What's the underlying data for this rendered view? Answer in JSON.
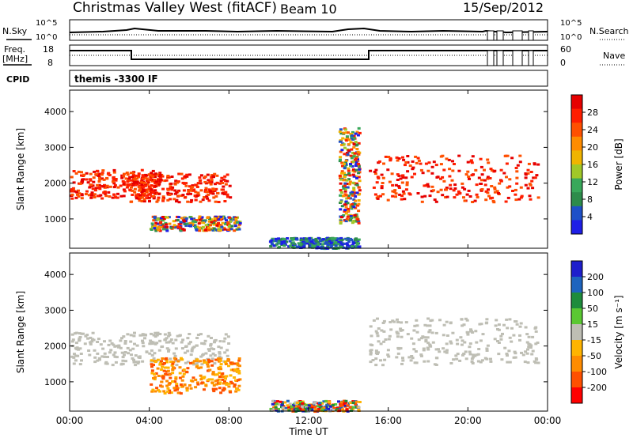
{
  "header": {
    "station": "Christmas Valley West (fitACF)",
    "beam": "Beam 10",
    "date": "15/Sep/2012",
    "cpid": "themis -3300 IF"
  },
  "labels": {
    "nsky_line1": "N.Sky",
    "nsearch": "N.Search",
    "freq_line1": "Freq.",
    "freq_line2": "[MHz]",
    "nave": "Nave",
    "cpid": "CPID",
    "power_panel_ylabel": "Slant Range [km]",
    "velocity_panel_ylabel": "Slant Range [km]",
    "xlabel": "Time UT",
    "power_cbar_label": "Power [dB]",
    "velocity_cbar_label": "Velocity [m s⁻¹]"
  },
  "colors": {
    "power_scale": [
      "#1e1ee6",
      "#1e50c8",
      "#2d8c4b",
      "#38a85a",
      "#a0c828",
      "#f0b400",
      "#ff8c00",
      "#ff5000",
      "#ff1e00",
      "#e60000"
    ],
    "velocity_scale": [
      "#1e1ecc",
      "#1e64be",
      "#1e8c3c",
      "#5ac832",
      "#bebeb4",
      "#ffb400",
      "#ff8c00",
      "#ff5000",
      "#ff0000"
    ],
    "ground_scatter": "#bebeb4"
  },
  "chart_data": [
    {
      "type": "line",
      "name": "N.Sky / N.Search noise panel",
      "y_left_ticks": [
        "10^5",
        "10^0"
      ],
      "y_right_ticks": [
        "10^5",
        "10^0"
      ],
      "series": [
        {
          "name": "N.Sky",
          "x": [
            0,
            2,
            4,
            6,
            8,
            10,
            12,
            14,
            15,
            16,
            18,
            20,
            21,
            22,
            23,
            24
          ],
          "values": [
            2,
            2,
            2.1,
            2.1,
            2,
            2,
            2.1,
            2.3,
            2.1,
            2.1,
            2.2,
            2.1,
            2.1,
            2.1,
            2.1,
            2
          ]
        },
        {
          "name": "N.Search",
          "x": [
            0,
            2,
            4,
            6,
            8,
            10,
            12,
            14,
            15,
            16,
            18,
            20,
            21,
            22,
            23,
            24
          ],
          "values": [
            1.6,
            1.6,
            1.6,
            1.6,
            1.6,
            1.6,
            1.6,
            1.6,
            1.6,
            1.6,
            1.6,
            1.6,
            1.6,
            1.6,
            1.6,
            1.6
          ]
        }
      ]
    },
    {
      "type": "line",
      "name": "Frequency / Nave panel",
      "y_left_ticks": [
        "18",
        "8"
      ],
      "y_right_ticks": [
        "60",
        "0"
      ],
      "series": [
        {
          "name": "Freq.",
          "x": [
            0,
            2.95,
            3.0,
            14.9,
            15.0,
            24
          ],
          "values": [
            15.5,
            15.5,
            9.5,
            9.5,
            15.5,
            15.5
          ]
        },
        {
          "name": "Nave",
          "x": [
            0,
            24
          ],
          "values": [
            33,
            33
          ]
        }
      ]
    },
    {
      "type": "heatmap",
      "name": "Power",
      "xlabel": "Time UT",
      "ylabel": "Slant Range [km]",
      "x_ticks": [
        "00:00",
        "04:00",
        "08:00",
        "12:00",
        "16:00",
        "20:00",
        "00:00"
      ],
      "xlim": [
        0,
        24
      ],
      "y_ticks": [
        1000,
        2000,
        3000,
        4000
      ],
      "ylim": [
        180,
        4600
      ],
      "colorbar_ticks": [
        4,
        8,
        12,
        16,
        20,
        24,
        28
      ],
      "colorbar_label": "Power [dB]",
      "regions": [
        {
          "t": [
            0,
            4.5
          ],
          "r": [
            1600,
            2400
          ],
          "level": "high"
        },
        {
          "t": [
            3,
            8
          ],
          "r": [
            1500,
            2300
          ],
          "level": "high"
        },
        {
          "t": [
            4,
            8.5
          ],
          "r": [
            700,
            1100
          ],
          "level": "mixed"
        },
        {
          "t": [
            10,
            14.5
          ],
          "r": [
            200,
            500
          ],
          "level": "low"
        },
        {
          "t": [
            15,
            23.5
          ],
          "r": [
            1500,
            2800
          ],
          "level": "high"
        },
        {
          "t": [
            13.5,
            14.5
          ],
          "r": [
            900,
            3600
          ],
          "level": "mixed"
        }
      ]
    },
    {
      "type": "heatmap",
      "name": "Velocity",
      "xlabel": "Time UT",
      "ylabel": "Slant Range [km]",
      "x_ticks": [
        "00:00",
        "04:00",
        "08:00",
        "12:00",
        "16:00",
        "20:00",
        "00:00"
      ],
      "xlim": [
        0,
        24
      ],
      "y_ticks": [
        1000,
        2000,
        3000,
        4000
      ],
      "ylim": [
        180,
        4600
      ],
      "colorbar_ticks": [
        200,
        100,
        50,
        15,
        -15,
        -50,
        -100,
        -200
      ],
      "colorbar_label": "Velocity [m s⁻¹]",
      "regions": [
        {
          "t": [
            0,
            8
          ],
          "r": [
            1500,
            2400
          ],
          "level": "ground"
        },
        {
          "t": [
            15,
            23.5
          ],
          "r": [
            1500,
            2800
          ],
          "level": "ground"
        },
        {
          "t": [
            4,
            8.5
          ],
          "r": [
            700,
            1700
          ],
          "level": "negative"
        },
        {
          "t": [
            10,
            14.5
          ],
          "r": [
            200,
            500
          ],
          "level": "mixed"
        }
      ]
    }
  ]
}
